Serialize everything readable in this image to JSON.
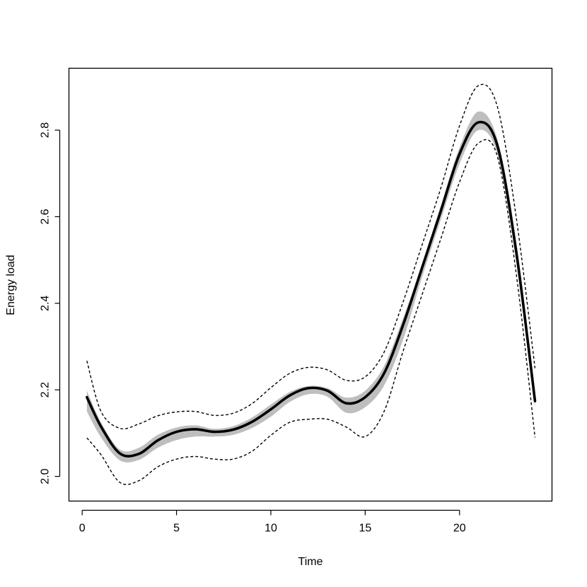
{
  "chart_data": {
    "type": "line",
    "title": "",
    "xlabel": "Time",
    "ylabel": "Energy load",
    "xlim": [
      -0.7,
      24.9
    ],
    "ylim": [
      1.943,
      2.943
    ],
    "xticks": [
      0,
      5,
      10,
      15,
      20
    ],
    "yticks": [
      2.0,
      2.2,
      2.4,
      2.6,
      2.8
    ],
    "ytick_labels": [
      "2.0",
      "2.2",
      "2.4",
      "2.6",
      "2.8"
    ],
    "grid": false,
    "legend": "none",
    "series": [
      {
        "role": "mean_curve",
        "style": "solid-thick",
        "color": "#000000",
        "x": [
          0.25,
          1,
          2,
          3,
          4,
          5,
          6,
          7,
          8,
          9,
          10,
          11,
          12,
          13,
          14,
          15,
          16,
          17,
          18,
          19,
          20,
          21,
          22,
          23,
          24
        ],
        "y": [
          2.183,
          2.115,
          2.053,
          2.052,
          2.083,
          2.103,
          2.109,
          2.103,
          2.108,
          2.126,
          2.155,
          2.187,
          2.204,
          2.198,
          2.169,
          2.183,
          2.238,
          2.349,
          2.48,
          2.612,
          2.745,
          2.818,
          2.765,
          2.52,
          2.174
        ]
      },
      {
        "role": "band_upper",
        "style": "grey-band",
        "color": "#bebebe",
        "x": [
          0.25,
          1,
          2,
          3,
          4,
          5,
          6,
          7,
          8,
          9,
          10,
          11,
          12,
          13,
          14,
          15,
          16,
          17,
          18,
          19,
          20,
          21,
          22,
          23,
          24
        ],
        "y": [
          2.198,
          2.125,
          2.062,
          2.066,
          2.096,
          2.113,
          2.118,
          2.11,
          2.116,
          2.136,
          2.166,
          2.195,
          2.209,
          2.204,
          2.182,
          2.198,
          2.255,
          2.365,
          2.49,
          2.625,
          2.76,
          2.843,
          2.78,
          2.545,
          2.2
        ]
      },
      {
        "role": "band_lower",
        "style": "grey-band",
        "color": "#bebebe",
        "x": [
          0.25,
          1,
          2,
          3,
          4,
          5,
          6,
          7,
          8,
          9,
          10,
          11,
          12,
          13,
          14,
          15,
          16,
          17,
          18,
          19,
          20,
          21,
          22,
          23,
          24
        ],
        "y": [
          2.15,
          2.09,
          2.037,
          2.038,
          2.066,
          2.084,
          2.092,
          2.092,
          2.096,
          2.112,
          2.138,
          2.172,
          2.19,
          2.184,
          2.147,
          2.16,
          2.21,
          2.315,
          2.458,
          2.592,
          2.722,
          2.8,
          2.745,
          2.5,
          2.16
        ]
      },
      {
        "role": "upper_bound",
        "style": "dashed",
        "color": "#000000",
        "x": [
          0.25,
          1,
          2,
          3,
          4,
          5,
          6,
          7,
          8,
          9,
          10,
          11,
          12,
          13,
          14,
          15,
          16,
          17,
          18,
          19,
          20,
          21,
          22,
          23,
          24
        ],
        "y": [
          2.267,
          2.15,
          2.111,
          2.121,
          2.14,
          2.149,
          2.15,
          2.141,
          2.146,
          2.168,
          2.205,
          2.238,
          2.252,
          2.246,
          2.222,
          2.23,
          2.287,
          2.402,
          2.533,
          2.665,
          2.81,
          2.903,
          2.855,
          2.6,
          2.25
        ]
      },
      {
        "role": "lower_bound",
        "style": "dashed",
        "color": "#000000",
        "x": [
          0.25,
          1,
          2,
          3,
          4,
          5,
          6,
          7,
          8,
          9,
          10,
          11,
          12,
          13,
          14,
          15,
          16,
          17,
          18,
          19,
          20,
          21,
          22,
          23,
          24
        ],
        "y": [
          2.089,
          2.05,
          1.986,
          1.99,
          2.022,
          2.04,
          2.046,
          2.04,
          2.04,
          2.058,
          2.095,
          2.125,
          2.132,
          2.132,
          2.114,
          2.092,
          2.15,
          2.288,
          2.418,
          2.548,
          2.68,
          2.77,
          2.74,
          2.47,
          2.09
        ]
      }
    ]
  }
}
